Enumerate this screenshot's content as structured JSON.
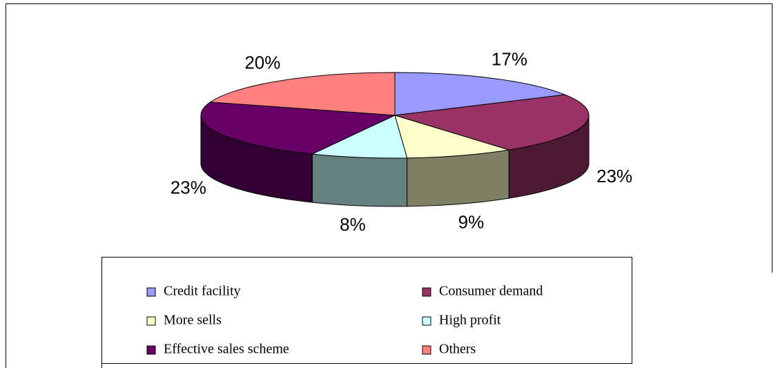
{
  "chart_data": {
    "type": "pie3d",
    "categories": [
      "Credit facility",
      "Consumer demand",
      "More sells",
      "High profit",
      "Effective sales scheme",
      "Others"
    ],
    "values": [
      17,
      23,
      9,
      8,
      23,
      20
    ],
    "value_labels": [
      "17%",
      "23%",
      "9%",
      "8%",
      "23%",
      "20%"
    ],
    "colors": [
      "#9999ff",
      "#993366",
      "#ffffcc",
      "#ccffff",
      "#660066",
      "#ff8080"
    ],
    "legend": "bottom"
  }
}
